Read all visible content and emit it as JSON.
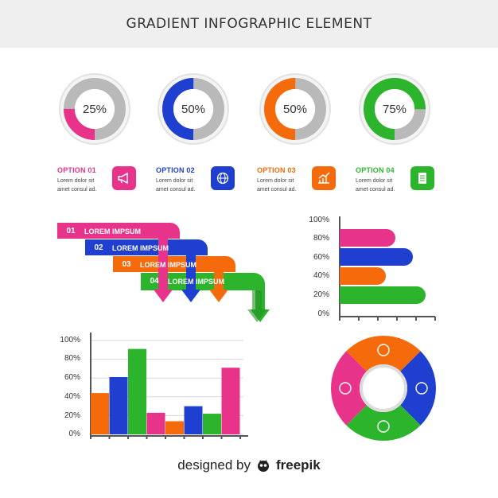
{
  "header": {
    "title": "GRADIENT INFOGRAPHIC ELEMENT"
  },
  "gauges": [
    {
      "label": "25%",
      "value": 0.25,
      "color": "#e8338a"
    },
    {
      "label": "50%",
      "value": 0.5,
      "color": "#1f3fd1"
    },
    {
      "label": "50%",
      "value": 0.5,
      "color": "#f56a0a"
    },
    {
      "label": "75%",
      "value": 0.75,
      "color": "#2cb52c"
    }
  ],
  "options": [
    {
      "title": "OPTION 01",
      "desc": "Lorem dolor sit amet consul ad.",
      "color": "#e8338a",
      "icon": "megaphone-icon"
    },
    {
      "title": "OPTION 02",
      "desc": "Lorem dolor sit amet consul ad.",
      "color": "#1f3fd1",
      "icon": "globe-icon"
    },
    {
      "title": "OPTION 03",
      "desc": "Lorem dolor sit amet consul ad.",
      "color": "#f56a0a",
      "icon": "chart-icon"
    },
    {
      "title": "OPTION 04",
      "desc": "Lorem dolor sit amet consul ad.",
      "color": "#2cb52c",
      "icon": "document-icon"
    }
  ],
  "ribbons": [
    {
      "num": "01",
      "label": "LOREM IMPSUM",
      "color": "#e8338a"
    },
    {
      "num": "02",
      "label": "LOREM IMPSUM",
      "color": "#1f3fd1"
    },
    {
      "num": "03",
      "label": "LOREM IMPSUM",
      "color": "#f56a0a"
    },
    {
      "num": "04",
      "label": "LOREM IMPSUM",
      "color": "#2cb52c"
    }
  ],
  "chart_data": [
    {
      "type": "bar",
      "orientation": "horizontal",
      "categories": [
        "pink",
        "blue",
        "orange",
        "green"
      ],
      "values": [
        70,
        92,
        58,
        108
      ],
      "ticks": [
        "100%",
        "80%",
        "60%",
        "40%",
        "20%",
        "0%"
      ],
      "colors": [
        "#e8338a",
        "#1f3fd1",
        "#f56a0a",
        "#2cb52c"
      ]
    },
    {
      "type": "bar",
      "orientation": "vertical",
      "values": [
        44,
        61,
        91,
        23,
        14,
        30,
        22,
        71
      ],
      "colors": [
        "#f56a0a",
        "#1f3fd1",
        "#2cb52c",
        "#e8338a",
        "#f56a0a",
        "#1f3fd1",
        "#2cb52c",
        "#e8338a"
      ],
      "ticks": [
        "100%",
        "80%",
        "60%",
        "40%",
        "20%",
        "0%"
      ],
      "ylim": [
        0,
        100
      ]
    },
    {
      "type": "pie",
      "style": "donut",
      "segments": [
        {
          "color": "#f56a0a",
          "icon": "chart-icon",
          "value": 25
        },
        {
          "color": "#1f3fd1",
          "icon": "globe-icon",
          "value": 25
        },
        {
          "color": "#2cb52c",
          "icon": "document-icon",
          "value": 25
        },
        {
          "color": "#e8338a",
          "icon": "megaphone-icon",
          "value": 25
        }
      ]
    }
  ],
  "footer": {
    "prefix": "designed by",
    "brand": "freepik"
  }
}
